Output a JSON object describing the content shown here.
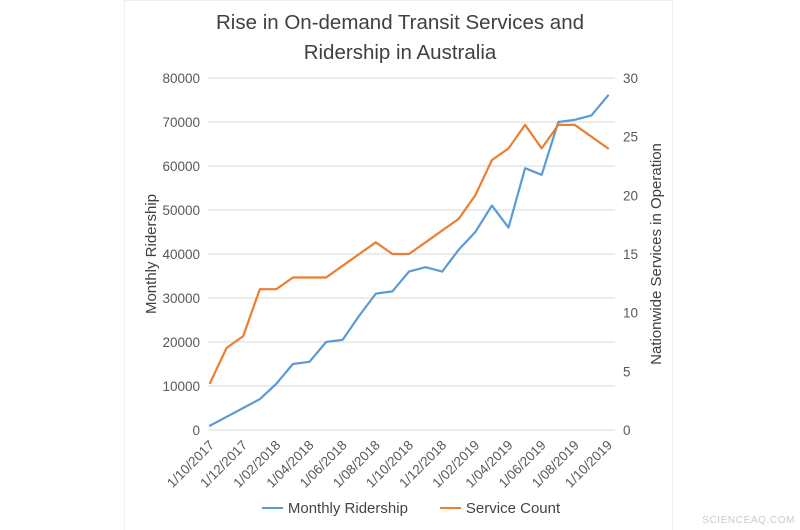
{
  "title": {
    "line1": "Rise in On-demand Transit Services and",
    "line2": "Ridership in Australia"
  },
  "watermark": "SCIENCEAQ.COM",
  "colors": {
    "grid": "#d9d9d9",
    "tick_text": "#595959",
    "title_text": "#404040",
    "series_blue": "#5B9BD5",
    "series_orange": "#ED7D31"
  },
  "legend": [
    {
      "label": "Monthly Ridership",
      "color": "#5B9BD5"
    },
    {
      "label": "Service Count",
      "color": "#ED7D31"
    }
  ],
  "chart_data": {
    "type": "line",
    "title": "Rise in On-demand Transit Services and Ridership in Australia",
    "grid": "horizontal",
    "legend_position": "bottom",
    "categories": [
      "1/10/2017",
      "1/11/2017",
      "1/12/2017",
      "1/01/2018",
      "1/02/2018",
      "1/03/2018",
      "1/04/2018",
      "1/05/2018",
      "1/06/2018",
      "1/07/2018",
      "1/08/2018",
      "1/09/2018",
      "1/10/2018",
      "1/11/2018",
      "1/12/2018",
      "1/01/2019",
      "1/02/2019",
      "1/03/2019",
      "1/04/2019",
      "1/05/2019",
      "1/06/2019",
      "1/07/2019",
      "1/08/2019",
      "1/09/2019",
      "1/10/2019"
    ],
    "x_tick_labels": [
      "1/10/2017",
      "1/12/2017",
      "1/02/2018",
      "1/04/2018",
      "1/06/2018",
      "1/08/2018",
      "1/10/2018",
      "1/12/2018",
      "1/02/2019",
      "1/04/2019",
      "1/06/2019",
      "1/08/2019",
      "1/10/2019"
    ],
    "x_tick_step": 2,
    "left_axis": {
      "label": "Monthly Ridership",
      "min": 0,
      "max": 80000,
      "step": 10000
    },
    "right_axis": {
      "label": "Nationwide Services in Operation",
      "min": 0,
      "max": 30,
      "step": 5
    },
    "series": [
      {
        "name": "Monthly Ridership",
        "axis": "left",
        "color": "#5B9BD5",
        "values": [
          1000,
          3000,
          5000,
          7000,
          10500,
          15000,
          15500,
          20000,
          20500,
          26000,
          31000,
          31500,
          36000,
          37000,
          36000,
          41000,
          45000,
          51000,
          46000,
          59500,
          58000,
          70000,
          70500,
          71500,
          76000
        ]
      },
      {
        "name": "Service Count",
        "axis": "right",
        "color": "#ED7D31",
        "values": [
          4,
          7,
          8,
          12,
          12,
          13,
          13,
          13,
          14,
          15,
          16,
          15,
          15,
          16,
          17,
          18,
          20,
          23,
          24,
          26,
          24,
          26,
          26,
          25,
          24
        ]
      }
    ]
  }
}
